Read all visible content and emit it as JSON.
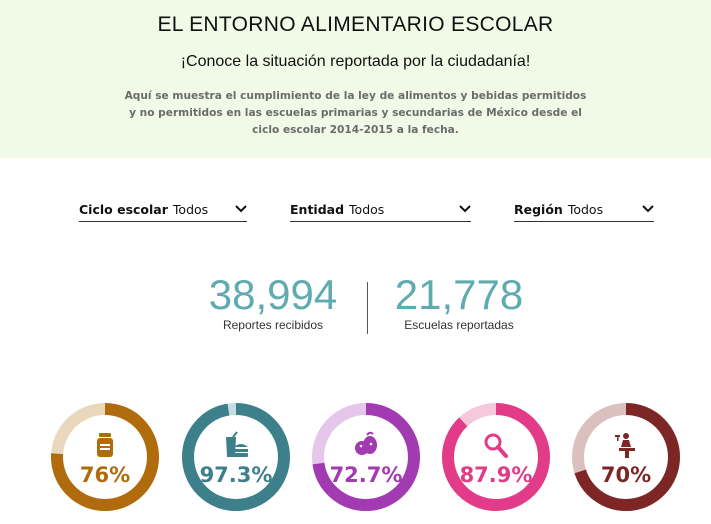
{
  "header": {
    "title": "EL ENTORNO ALIMENTARIO ESCOLAR",
    "subtitle": "¡Conoce la situación reportada por la ciudadanía!",
    "description": "Aquí se muestra el cumplimiento de la ley de alimentos y bebidas permitidos y no permitidos en las escuelas primarias y secundarias de México desde el ciclo escolar 2014-2015 a la fecha."
  },
  "filters": [
    {
      "label": "Ciclo escolar",
      "value": "Todos"
    },
    {
      "label": "Entidad",
      "value": "Todos"
    },
    {
      "label": "Región",
      "value": "Todos"
    }
  ],
  "stats": {
    "reports": {
      "value": "38,994",
      "label": "Reportes recibidos"
    },
    "schools": {
      "value": "21,778",
      "label": "Escuelas reportadas"
    }
  },
  "gauges": [
    {
      "icon": "food-jar-icon",
      "percent_label": "76%",
      "percent": 76,
      "color": "#b06c0c",
      "track": "#ead8bd"
    },
    {
      "icon": "fast-food-icon",
      "percent_label": "97.3%",
      "percent": 97.3,
      "color": "#3e7f8c",
      "track": "#c5dde2"
    },
    {
      "icon": "fruits-icon",
      "percent_label": "72.7%",
      "percent": 72.7,
      "color": "#a23ab1",
      "track": "#e6c7ec"
    },
    {
      "icon": "magnifier-icon",
      "percent_label": "87.9%",
      "percent": 87.9,
      "color": "#e23b87",
      "track": "#f7c7dc"
    },
    {
      "icon": "water-fountain-icon",
      "percent_label": "70%",
      "percent": 70,
      "color": "#7d2626",
      "track": "#dcc0bf"
    }
  ]
}
